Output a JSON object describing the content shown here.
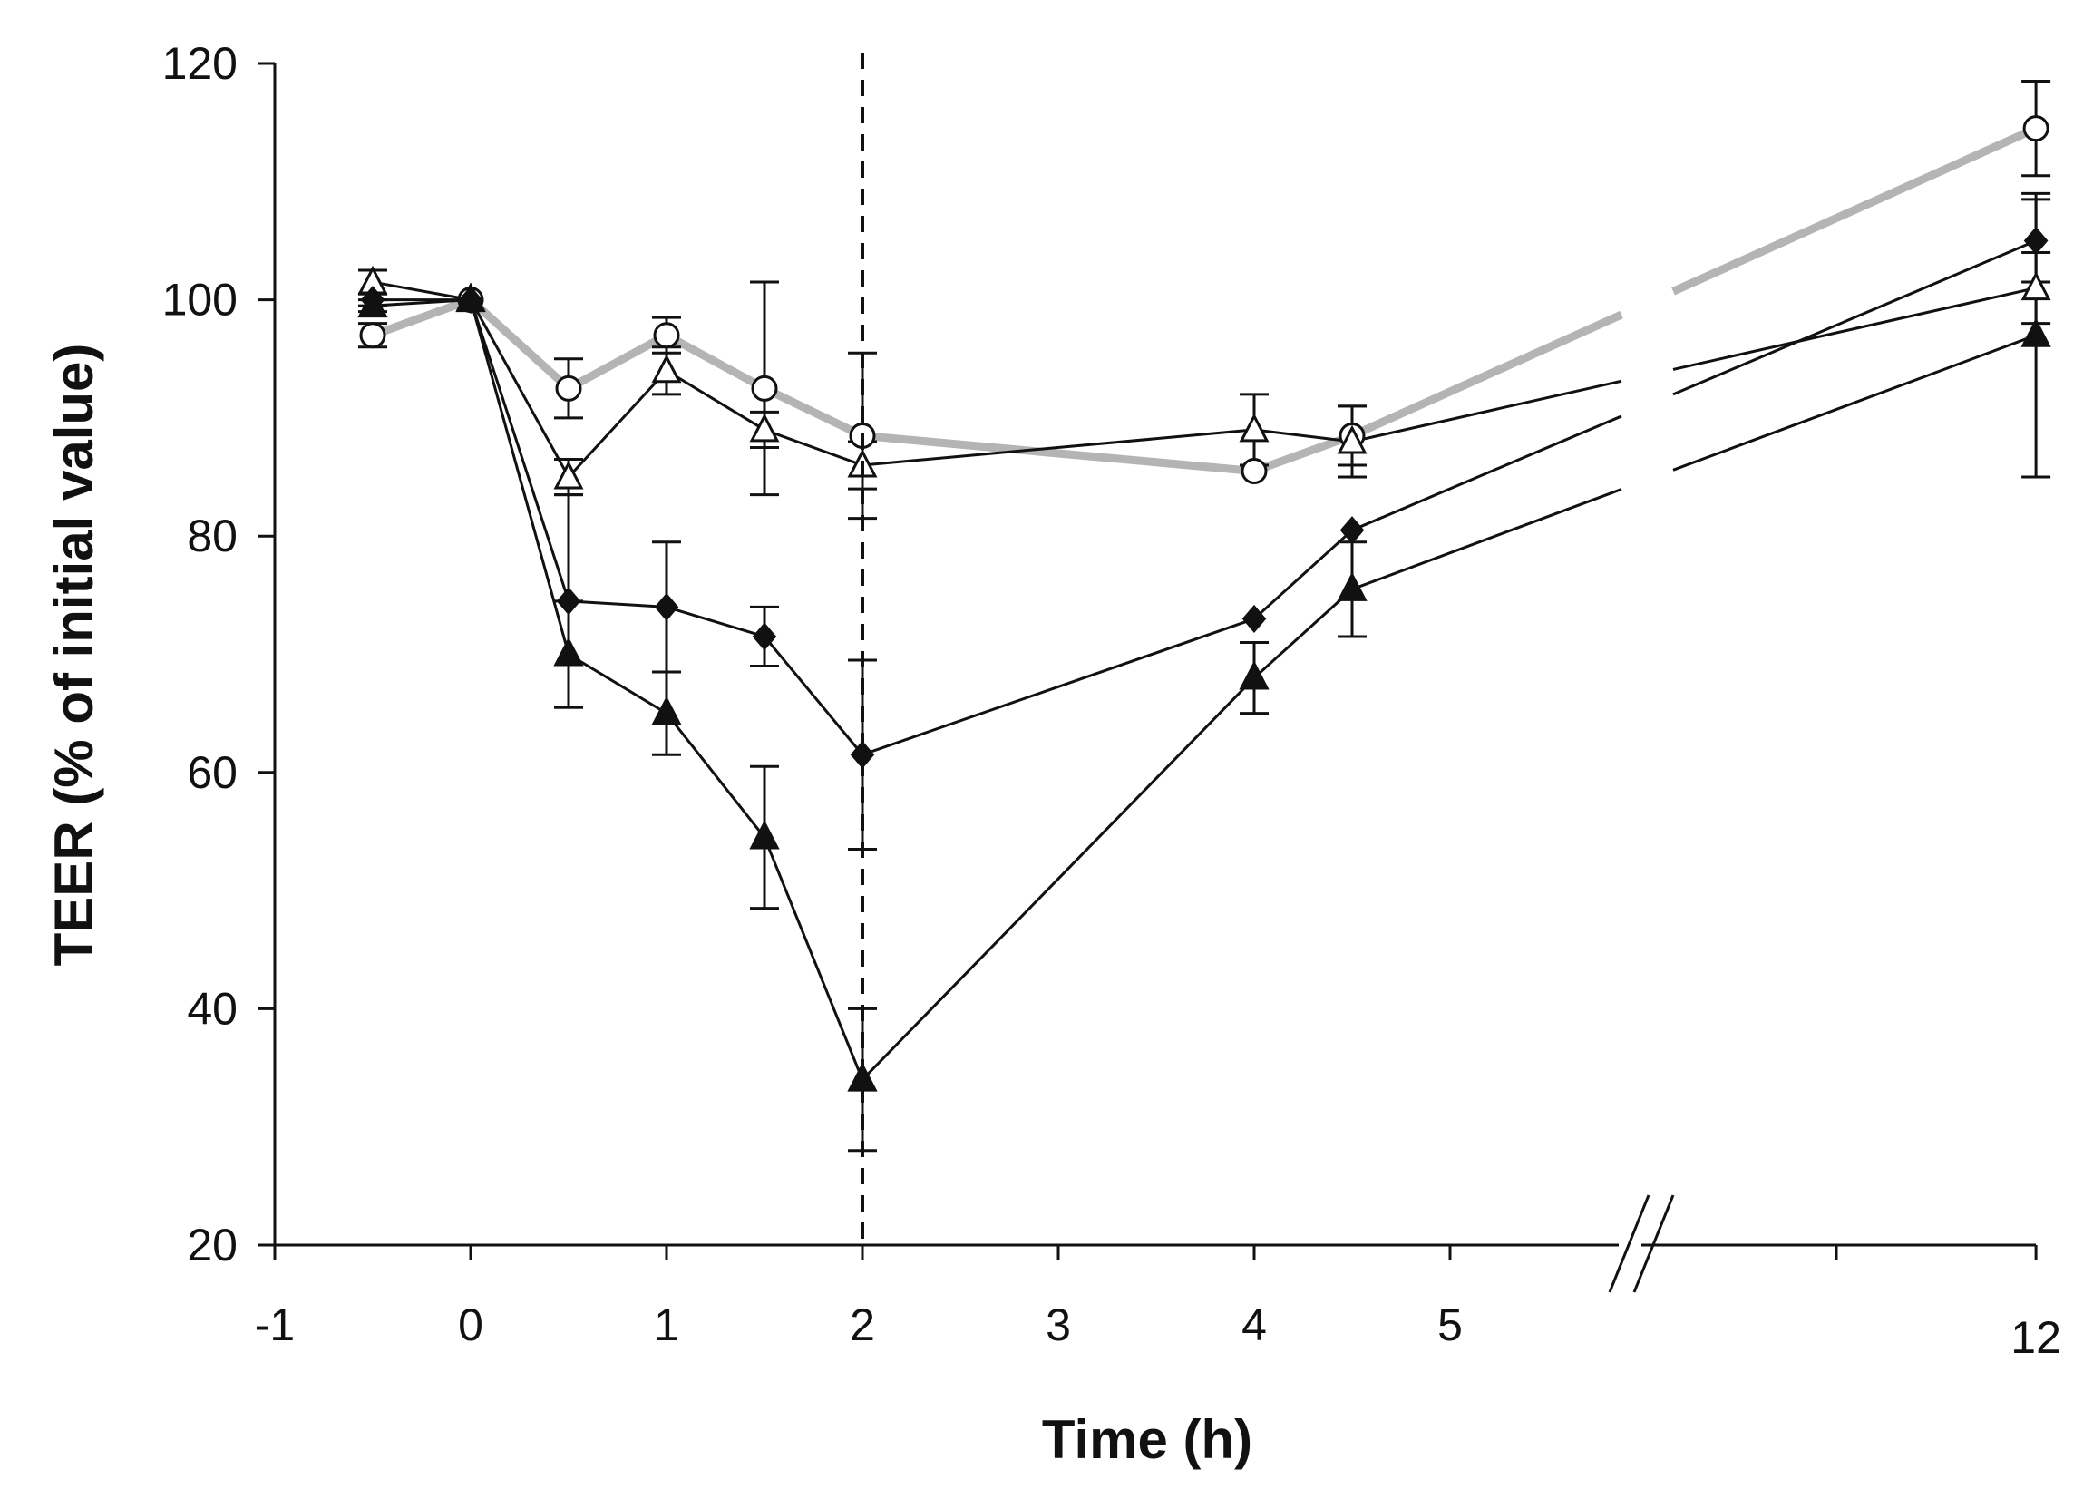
{
  "chart_data": {
    "type": "line",
    "title": "",
    "xlabel": "Time (h)",
    "ylabel": "TEER (% of initial value)",
    "xlim": [
      -1,
      12
    ],
    "ylim": [
      20,
      120
    ],
    "x_ticks": [
      -1,
      0,
      1,
      2,
      3,
      4,
      5,
      12
    ],
    "y_ticks": [
      20,
      40,
      60,
      80,
      100,
      120
    ],
    "x_axis_break": "between 5 and 12",
    "reference_line_x": 2,
    "series": [
      {
        "name": "open circles",
        "marker": "circle-open",
        "color": "#b4b4b4",
        "x": [
          -0.5,
          0,
          0.5,
          1,
          1.5,
          2,
          4,
          4.5,
          12
        ],
        "y": [
          97,
          100,
          92.5,
          97,
          92.5,
          88.5,
          85.5,
          88.5,
          114.5
        ],
        "err": [
          1,
          0,
          2.5,
          1.5,
          9,
          7,
          0,
          2.5,
          4
        ]
      },
      {
        "name": "open triangles",
        "marker": "triangle-open",
        "color": "#111111",
        "x": [
          -0.5,
          0,
          0.5,
          1,
          1.5,
          2,
          4,
          4.5,
          12
        ],
        "y": [
          101.5,
          100,
          85,
          94,
          89,
          86,
          89,
          88,
          101
        ],
        "err": [
          1,
          0,
          1.5,
          2,
          1.5,
          2,
          3,
          3,
          3
        ]
      },
      {
        "name": "filled diamonds",
        "marker": "diamond-filled",
        "color": "#111111",
        "x": [
          -0.5,
          0,
          0.5,
          1,
          1.5,
          2,
          4,
          4.5,
          12
        ],
        "y": [
          100,
          100,
          74.5,
          74,
          71.5,
          61.5,
          73,
          80.5,
          105
        ],
        "err": [
          0.5,
          0,
          9,
          5.5,
          2.5,
          8,
          0,
          0,
          3.5
        ]
      },
      {
        "name": "filled triangles",
        "marker": "triangle-filled",
        "color": "#111111",
        "x": [
          -0.5,
          0,
          0.5,
          1,
          1.5,
          2,
          4,
          4.5,
          12
        ],
        "y": [
          99.5,
          100,
          70,
          65,
          54.5,
          34,
          68,
          75.5,
          97
        ],
        "err": [
          0.5,
          0,
          4.5,
          3.5,
          6,
          6,
          3,
          4,
          12
        ]
      }
    ]
  }
}
